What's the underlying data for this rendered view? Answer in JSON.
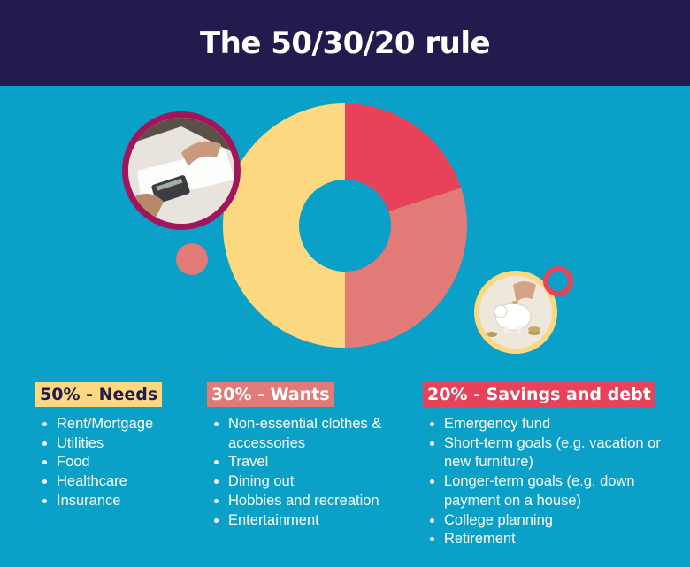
{
  "header": {
    "title": "The 50/30/20 rule"
  },
  "colors": {
    "background": "#0aa0c8",
    "header": "#221c4e",
    "needs": "#fcd980",
    "wants": "#e27a77",
    "savings": "#e8415a"
  },
  "chart_data": {
    "type": "pie",
    "variant": "donut",
    "title": "",
    "slices": [
      {
        "label": "20% - Savings and debt",
        "value": 20,
        "color": "#e8415a"
      },
      {
        "label": "30% - Wants",
        "value": 30,
        "color": "#e27a77"
      },
      {
        "label": "50% - Needs",
        "value": 50,
        "color": "#fcd980"
      }
    ]
  },
  "categories": [
    {
      "title": "50% - Needs",
      "items": [
        "Rent/Mortgage",
        "Utilities",
        "Food",
        "Healthcare",
        "Insurance"
      ]
    },
    {
      "title": "30% - Wants",
      "items": [
        "Non-essential clothes & accessories",
        "Travel",
        "Dining out",
        "Hobbies and recreation",
        "Entertainment"
      ]
    },
    {
      "title": "20% - Savings and debt",
      "items": [
        "Emergency fund",
        "Short-term goals (e.g. vacation or new furniture)",
        "Longer-term goals (e.g. down payment on a house)",
        "College planning",
        "Retirement"
      ]
    }
  ],
  "images": [
    {
      "name": "calculator-paperwork-photo"
    },
    {
      "name": "piggy-bank-coins-photo"
    }
  ]
}
